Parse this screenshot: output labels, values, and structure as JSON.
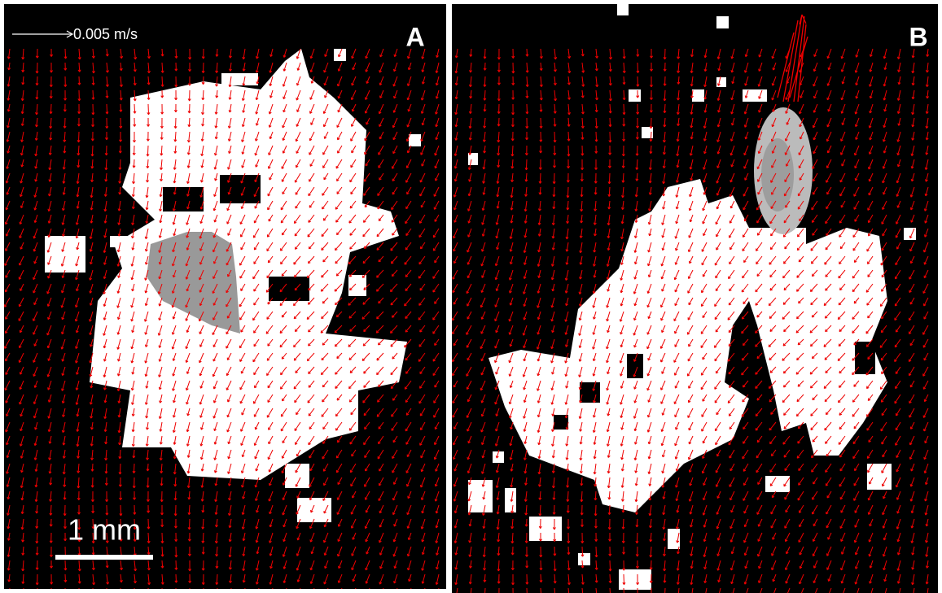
{
  "panels": [
    {
      "label": "A",
      "velocity_scale": "0.005 m/s",
      "scale_bar": "1 mm"
    },
    {
      "label": "B"
    }
  ]
}
